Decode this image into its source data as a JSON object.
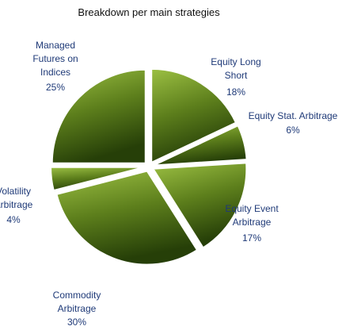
{
  "chart_data": {
    "type": "pie",
    "title": "Breakdown per main strategies",
    "categories": [
      "Equity Long Short",
      "Equity Stat. Arbitrage",
      "Equity Event Arbitrage",
      "Commodity Arbitrage",
      "Volatility Arbitrage",
      "Managed Futures on Indices"
    ],
    "values": [
      18,
      6,
      17,
      30,
      4,
      25
    ],
    "value_labels": [
      "18%",
      "6%",
      "17%",
      "30%",
      "4%",
      "25%"
    ],
    "color": "#5d7f1c"
  }
}
